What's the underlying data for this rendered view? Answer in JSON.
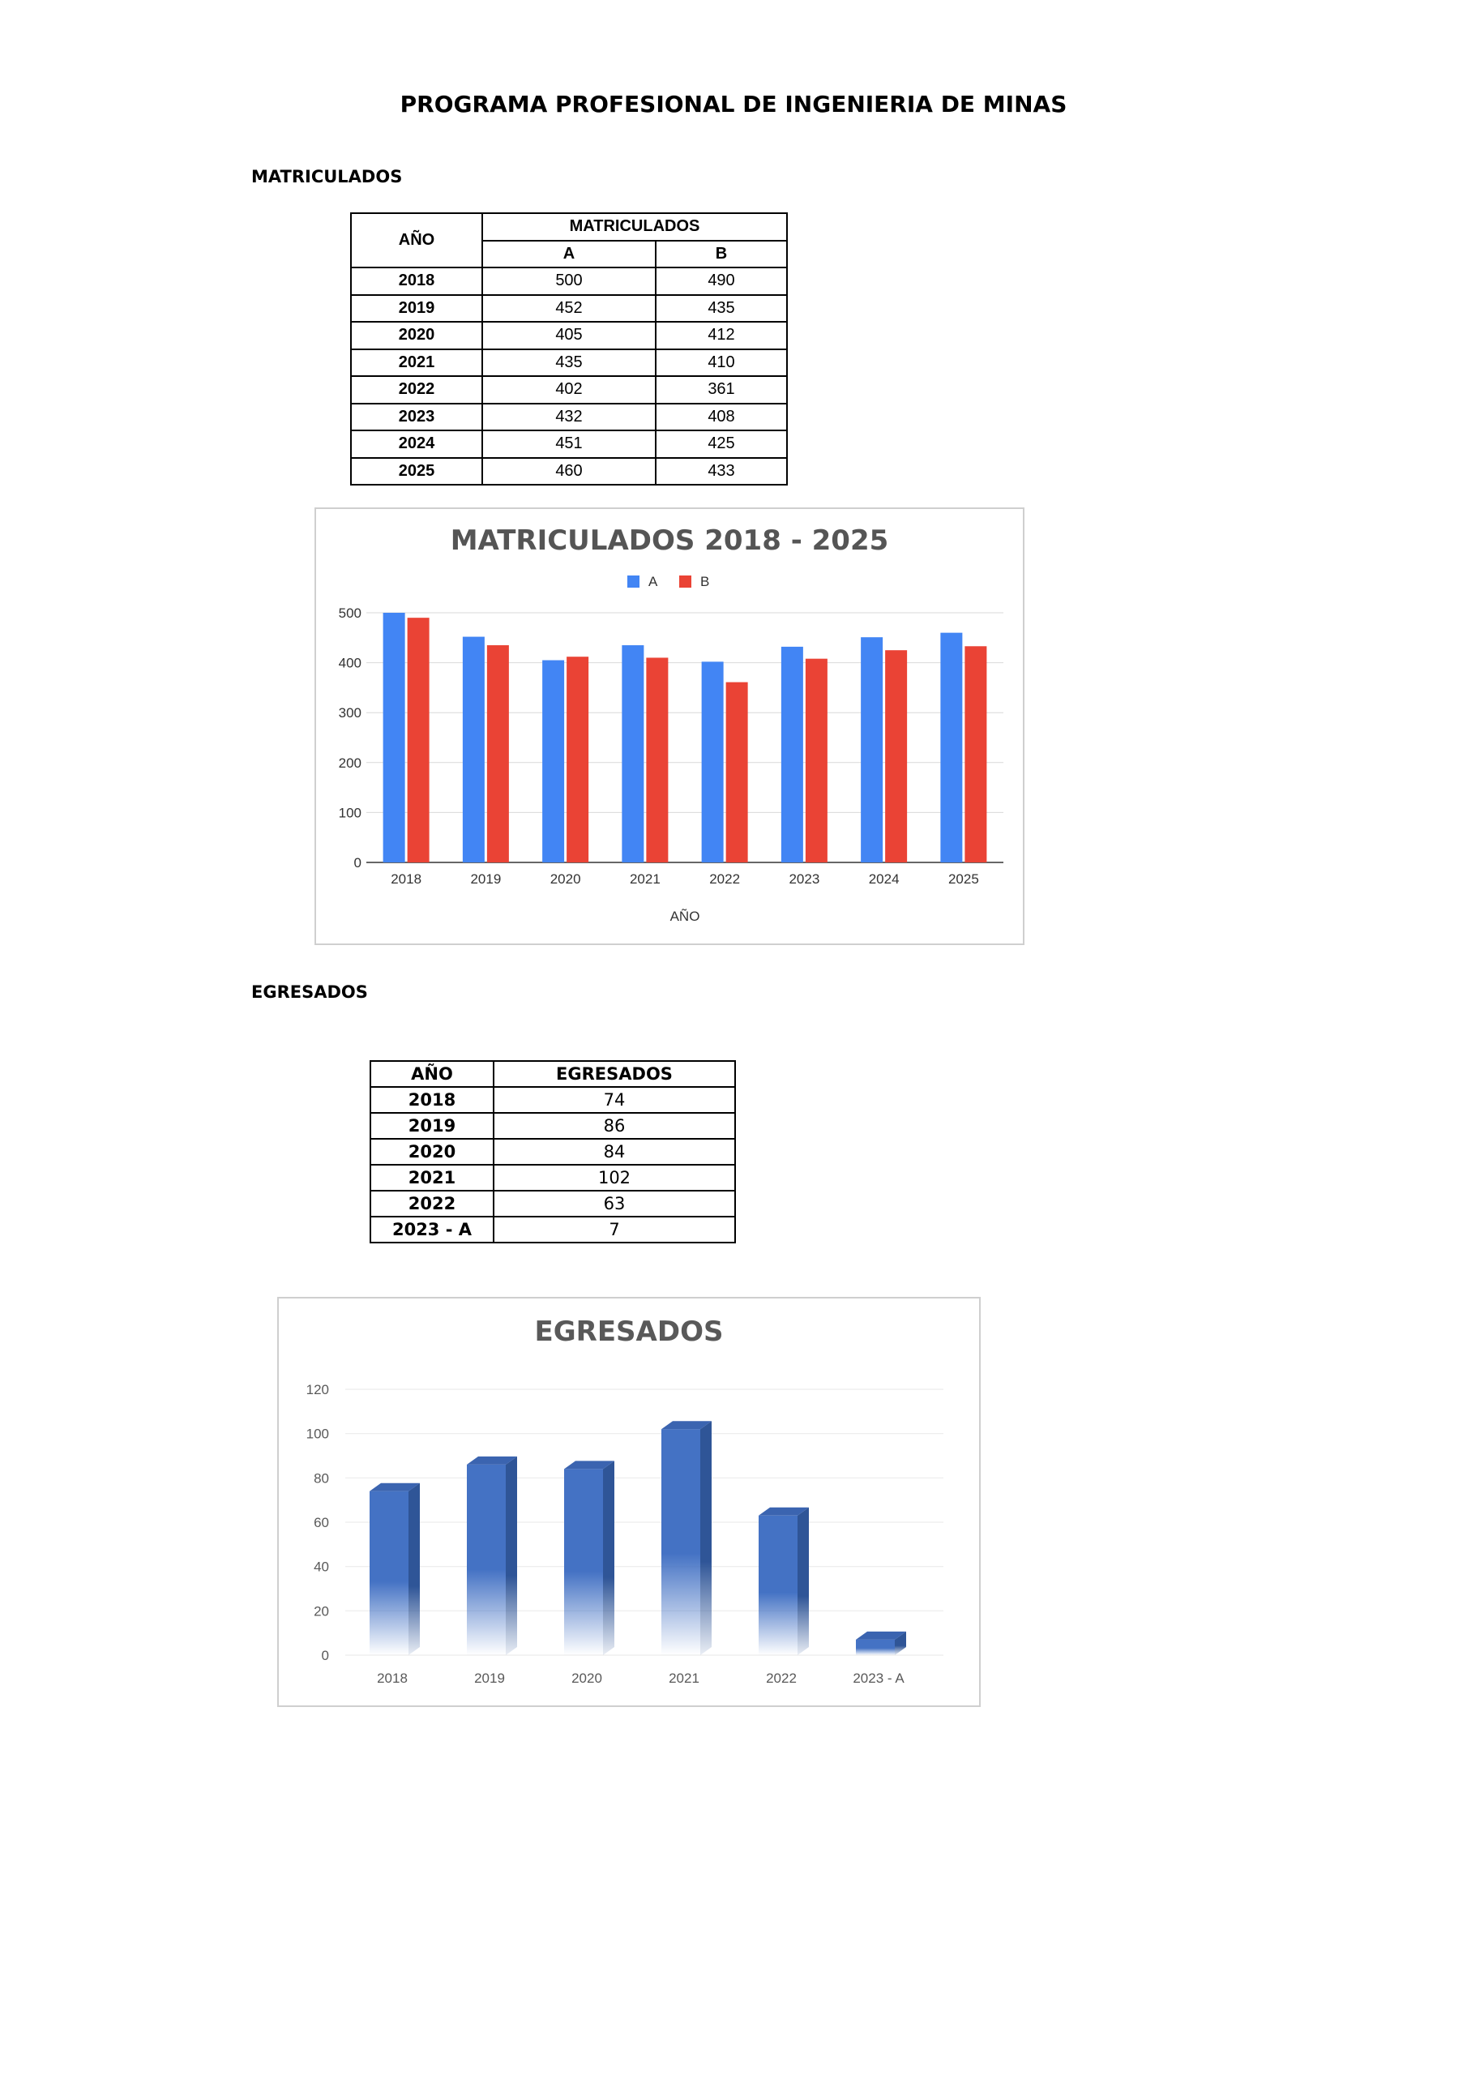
{
  "page": {
    "title": "PROGRAMA PROFESIONAL DE INGENIERIA DE MINAS",
    "section_matriculados": "MATRICULADOS",
    "section_egresados": "EGRESADOS"
  },
  "matriculados_table": {
    "year_header": "AÑO",
    "group_header": "MATRICULADOS",
    "col_a": "A",
    "col_b": "B",
    "rows": [
      {
        "year": "2018",
        "a": "500",
        "b": "490"
      },
      {
        "year": "2019",
        "a": "452",
        "b": "435"
      },
      {
        "year": "2020",
        "a": "405",
        "b": "412"
      },
      {
        "year": "2021",
        "a": "435",
        "b": "410"
      },
      {
        "year": "2022",
        "a": "402",
        "b": "361"
      },
      {
        "year": "2023",
        "a": "432",
        "b": "408"
      },
      {
        "year": "2024",
        "a": "451",
        "b": "425"
      },
      {
        "year": "2025",
        "a": "460",
        "b": "433"
      }
    ]
  },
  "egresados_table": {
    "year_header": "AÑO",
    "value_header": "EGRESADOS",
    "rows": [
      {
        "year": "2018",
        "value": "74"
      },
      {
        "year": "2019",
        "value": "86"
      },
      {
        "year": "2020",
        "value": "84"
      },
      {
        "year": "2021",
        "value": "102"
      },
      {
        "year": "2022",
        "value": "63"
      },
      {
        "year": "2023 - A",
        "value": "7"
      }
    ]
  },
  "chart_data": [
    {
      "type": "bar",
      "title": "MATRICULADOS 2018 - 2025",
      "xlabel": "AÑO",
      "ylabel": "",
      "categories": [
        "2018",
        "2019",
        "2020",
        "2021",
        "2022",
        "2023",
        "2024",
        "2025"
      ],
      "series": [
        {
          "name": "A",
          "color": "#4285f4",
          "values": [
            500,
            452,
            405,
            435,
            402,
            432,
            451,
            460
          ]
        },
        {
          "name": "B",
          "color": "#ea4335",
          "values": [
            490,
            435,
            412,
            410,
            361,
            408,
            425,
            433
          ]
        }
      ],
      "ylim": [
        0,
        500
      ],
      "yticks": [
        0,
        100,
        200,
        300,
        400,
        500
      ],
      "grid": true,
      "legend": "top-center"
    },
    {
      "type": "bar",
      "title": "EGRESADOS",
      "xlabel": "",
      "ylabel": "",
      "categories": [
        "2018",
        "2019",
        "2020",
        "2021",
        "2022",
        "2023 - A"
      ],
      "values": [
        74,
        86,
        84,
        102,
        63,
        7
      ],
      "color": "#4472c4",
      "ylim": [
        0,
        120
      ],
      "yticks": [
        0,
        20,
        40,
        60,
        80,
        100,
        120
      ],
      "grid": true,
      "style": "3d-gradient"
    }
  ]
}
